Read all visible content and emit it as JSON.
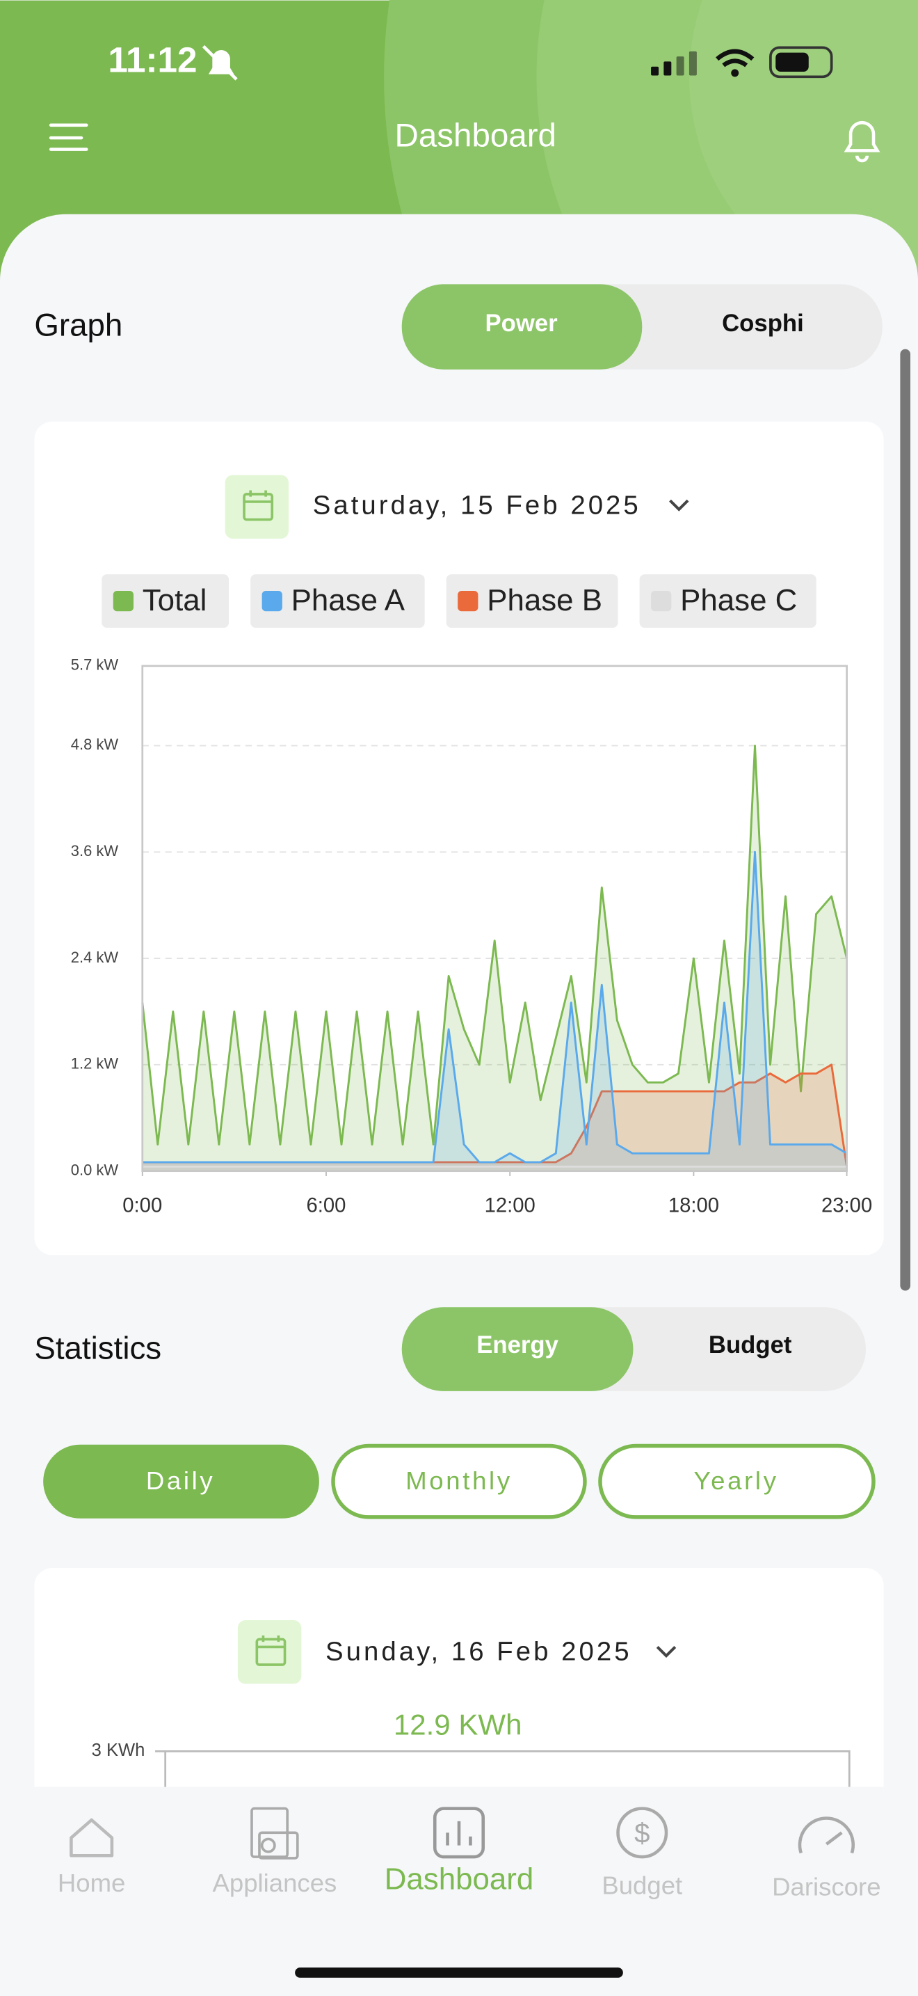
{
  "status": {
    "time": "11:12"
  },
  "header": {
    "title": "Dashboard"
  },
  "graph": {
    "title": "Graph",
    "tabs": [
      "Power",
      "Cosphi"
    ],
    "date": "Saturday, 15 Feb 2025"
  },
  "chart_data": {
    "type": "line",
    "x": [
      0,
      0.5,
      1,
      1.5,
      2,
      2.5,
      3,
      3.5,
      4,
      4.5,
      5,
      5.5,
      6,
      6.5,
      7,
      7.5,
      8,
      8.5,
      9,
      9.5,
      10,
      10.5,
      11,
      11.5,
      12,
      12.5,
      13,
      13.5,
      14,
      14.5,
      15,
      15.5,
      16,
      16.5,
      17,
      17.5,
      18,
      18.5,
      19,
      19.5,
      20,
      20.5,
      21,
      21.5,
      22,
      22.5,
      23
    ],
    "xlim": [
      0,
      23
    ],
    "xticks": [
      {
        "value": 0,
        "label": "0:00"
      },
      {
        "value": 6,
        "label": "6:00"
      },
      {
        "value": 12,
        "label": "12:00"
      },
      {
        "value": 18,
        "label": "18:00"
      },
      {
        "value": 23,
        "label": "23:00"
      }
    ],
    "ylim": [
      0,
      5.7
    ],
    "yticks": [
      {
        "value": 0,
        "label": "0.0 kW"
      },
      {
        "value": 1.2,
        "label": "1.2 kW"
      },
      {
        "value": 2.4,
        "label": "2.4 kW"
      },
      {
        "value": 3.6,
        "label": "3.6 kW"
      },
      {
        "value": 4.8,
        "label": "4.8 kW"
      },
      {
        "value": 5.7,
        "label": "5.7 kW"
      }
    ],
    "grid": true,
    "series": [
      {
        "name": "Total",
        "color": "#7cb950",
        "values": [
          1.9,
          0.3,
          1.8,
          0.3,
          1.8,
          0.3,
          1.8,
          0.3,
          1.8,
          0.3,
          1.8,
          0.3,
          1.8,
          0.3,
          1.8,
          0.3,
          1.8,
          0.3,
          1.8,
          0.3,
          2.2,
          1.6,
          1.2,
          2.6,
          1.0,
          1.9,
          0.8,
          1.5,
          2.2,
          1.0,
          3.2,
          1.7,
          1.2,
          1.0,
          1.0,
          1.1,
          2.4,
          1.0,
          2.6,
          1.1,
          4.8,
          1.2,
          3.1,
          0.9,
          2.9,
          3.1,
          2.4
        ]
      },
      {
        "name": "Phase A",
        "color": "#5aa9ec",
        "values": [
          0.1,
          0.1,
          0.1,
          0.1,
          0.1,
          0.1,
          0.1,
          0.1,
          0.1,
          0.1,
          0.1,
          0.1,
          0.1,
          0.1,
          0.1,
          0.1,
          0.1,
          0.1,
          0.1,
          0.1,
          1.6,
          0.3,
          0.1,
          0.1,
          0.2,
          0.1,
          0.1,
          0.2,
          1.9,
          0.3,
          2.1,
          0.3,
          0.2,
          0.2,
          0.2,
          0.2,
          0.2,
          0.2,
          1.9,
          0.3,
          3.6,
          0.3,
          0.3,
          0.3,
          0.3,
          0.3,
          0.2
        ]
      },
      {
        "name": "Phase B",
        "color": "#ea6a3c",
        "values": [
          0.1,
          0.1,
          0.1,
          0.1,
          0.1,
          0.1,
          0.1,
          0.1,
          0.1,
          0.1,
          0.1,
          0.1,
          0.1,
          0.1,
          0.1,
          0.1,
          0.1,
          0.1,
          0.1,
          0.1,
          0.1,
          0.1,
          0.1,
          0.1,
          0.1,
          0.1,
          0.1,
          0.1,
          0.2,
          0.5,
          0.9,
          0.9,
          0.9,
          0.9,
          0.9,
          0.9,
          0.9,
          0.9,
          0.9,
          1.0,
          1.0,
          1.1,
          1.0,
          1.1,
          1.1,
          1.2,
          0.05
        ]
      },
      {
        "name": "Phase C",
        "color": "#dddddd",
        "values": [
          0.05,
          0.05,
          0.05,
          0.05,
          0.05,
          0.05,
          0.05,
          0.05,
          0.05,
          0.05,
          0.05,
          0.05,
          0.05,
          0.05,
          0.05,
          0.05,
          0.05,
          0.05,
          0.05,
          0.05,
          0.05,
          0.05,
          0.05,
          0.05,
          0.05,
          0.05,
          0.05,
          0.05,
          0.05,
          0.05,
          0.05,
          0.05,
          0.05,
          0.05,
          0.05,
          0.05,
          0.05,
          0.05,
          0.05,
          0.05,
          0.05,
          0.05,
          0.05,
          0.05,
          0.05,
          0.05,
          0.05
        ]
      }
    ]
  },
  "statistics": {
    "title": "Statistics",
    "tabs": [
      "Energy",
      "Budget"
    ],
    "periods": [
      "Daily",
      "Monthly",
      "Yearly"
    ],
    "date": "Sunday, 16 Feb 2025",
    "total": "12.9 KWh",
    "y_label": "3 KWh"
  },
  "nav": [
    "Home",
    "Appliances",
    "Dashboard",
    "Budget",
    "Dariscore"
  ]
}
